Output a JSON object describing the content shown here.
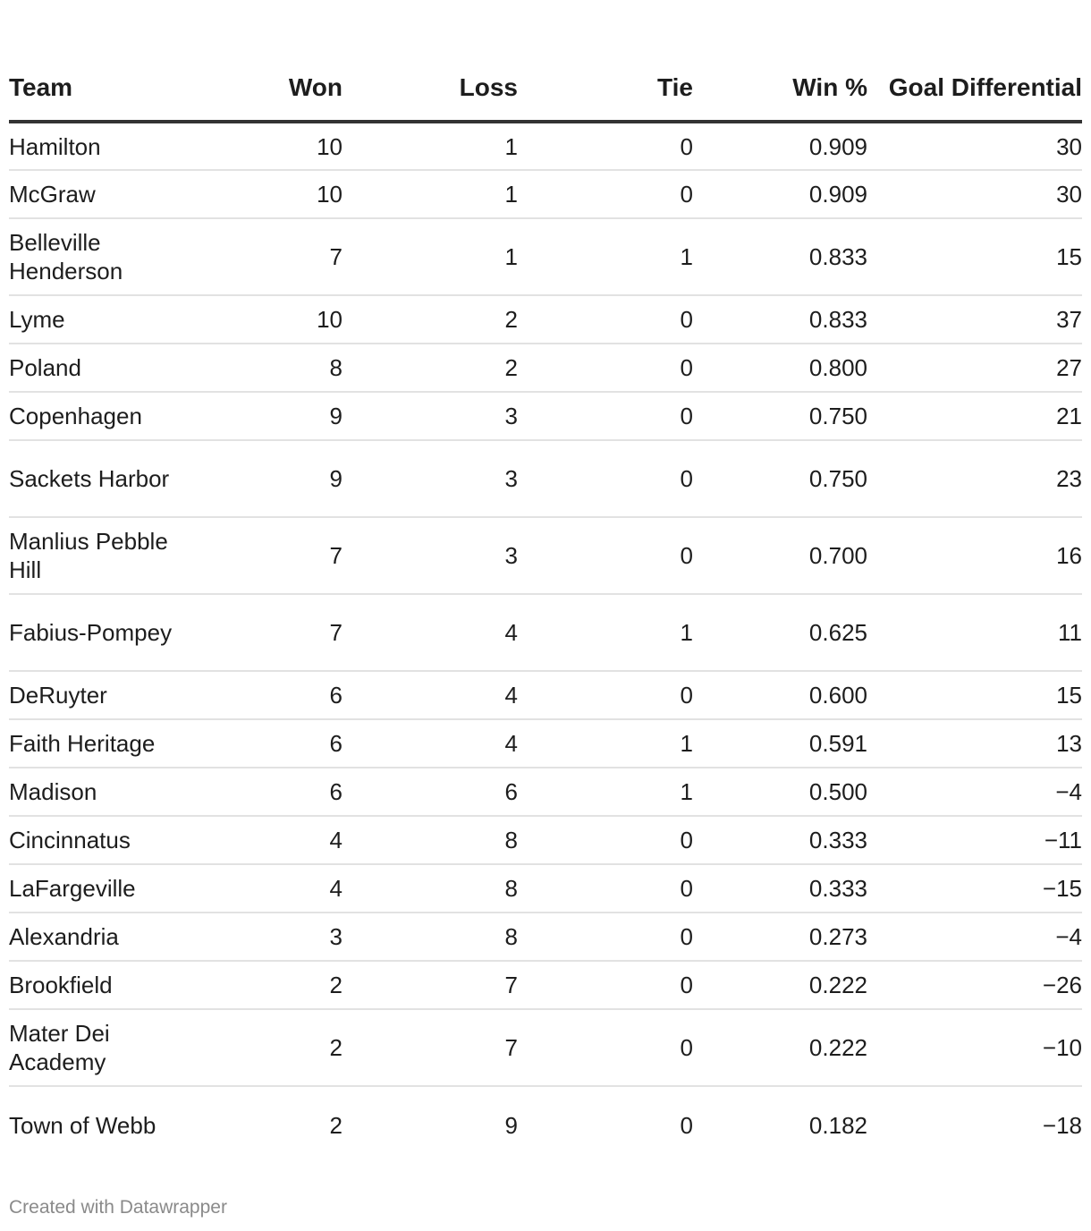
{
  "chart_data": {
    "type": "table",
    "columns": [
      "Team",
      "Won",
      "Loss",
      "Tie",
      "Win %",
      "Goal Differential"
    ],
    "rows": [
      {
        "team": "Hamilton",
        "won": "10",
        "loss": "1",
        "tie": "0",
        "pct": "0.909",
        "gd": "30"
      },
      {
        "team": "McGraw",
        "won": "10",
        "loss": "1",
        "tie": "0",
        "pct": "0.909",
        "gd": "30"
      },
      {
        "team": "Belleville Henderson",
        "won": "7",
        "loss": "1",
        "tie": "1",
        "pct": "0.833",
        "gd": "15"
      },
      {
        "team": "Lyme",
        "won": "10",
        "loss": "2",
        "tie": "0",
        "pct": "0.833",
        "gd": "37"
      },
      {
        "team": "Poland",
        "won": "8",
        "loss": "2",
        "tie": "0",
        "pct": "0.800",
        "gd": "27"
      },
      {
        "team": "Copenhagen",
        "won": "9",
        "loss": "3",
        "tie": "0",
        "pct": "0.750",
        "gd": "21"
      },
      {
        "team": "Sackets Harbor",
        "won": "9",
        "loss": "3",
        "tie": "0",
        "pct": "0.750",
        "gd": "23"
      },
      {
        "team": "Manlius Pebble Hill",
        "won": "7",
        "loss": "3",
        "tie": "0",
        "pct": "0.700",
        "gd": "16"
      },
      {
        "team": "Fabius-Pompey",
        "won": "7",
        "loss": "4",
        "tie": "1",
        "pct": "0.625",
        "gd": "11"
      },
      {
        "team": "DeRuyter",
        "won": "6",
        "loss": "4",
        "tie": "0",
        "pct": "0.600",
        "gd": "15"
      },
      {
        "team": "Faith Heritage",
        "won": "6",
        "loss": "4",
        "tie": "1",
        "pct": "0.591",
        "gd": "13"
      },
      {
        "team": "Madison",
        "won": "6",
        "loss": "6",
        "tie": "1",
        "pct": "0.500",
        "gd": "−4"
      },
      {
        "team": "Cincinnatus",
        "won": "4",
        "loss": "8",
        "tie": "0",
        "pct": "0.333",
        "gd": "−11"
      },
      {
        "team": "LaFargeville",
        "won": "4",
        "loss": "8",
        "tie": "0",
        "pct": "0.333",
        "gd": "−15"
      },
      {
        "team": "Alexandria",
        "won": "3",
        "loss": "8",
        "tie": "0",
        "pct": "0.273",
        "gd": "−4"
      },
      {
        "team": "Brookfield",
        "won": "2",
        "loss": "7",
        "tie": "0",
        "pct": "0.222",
        "gd": "−26"
      },
      {
        "team": "Mater Dei Academy",
        "won": "2",
        "loss": "7",
        "tie": "0",
        "pct": "0.222",
        "gd": "−10"
      },
      {
        "team": "Town of Webb",
        "won": "2",
        "loss": "9",
        "tie": "0",
        "pct": "0.182",
        "gd": "−18"
      }
    ]
  },
  "footer": {
    "credit": "Created with Datawrapper"
  }
}
